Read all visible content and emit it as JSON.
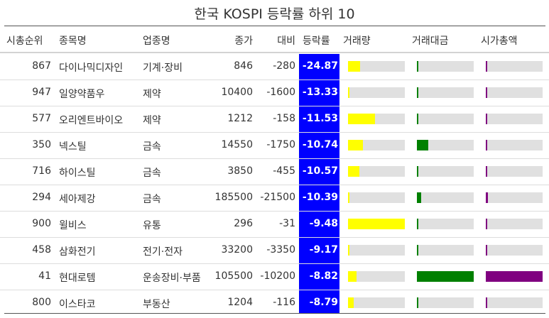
{
  "title": "한국 KOSPI 등락률 하위 10",
  "columns": {
    "rank": "시총순위",
    "name": "종목명",
    "sector": "업종명",
    "close": "종가",
    "diff": "대비",
    "change": "등락률",
    "volume": "거래량",
    "value": "거래대금",
    "cap": "시가총액"
  },
  "colors": {
    "change_bg": "#0000ff",
    "volume_bar": "#ffff00",
    "value_bar": "#008000",
    "cap_bar": "#800080",
    "bar_track": "#e0e0e0"
  },
  "rows": [
    {
      "rank": "867",
      "name": "다이나믹디자인",
      "sector": "기계·장비",
      "close": "846",
      "diff": "-280",
      "change": "-24.87",
      "volume_level": 0.21,
      "value_level": 0.02,
      "cap_level": 0.02
    },
    {
      "rank": "947",
      "name": "일양약품우",
      "sector": "제약",
      "close": "10400",
      "diff": "-1600",
      "change": "-13.33",
      "volume_level": 0.02,
      "value_level": 0.0,
      "cap_level": 0.0
    },
    {
      "rank": "577",
      "name": "오리엔트바이오",
      "sector": "제약",
      "close": "1212",
      "diff": "-158",
      "change": "-11.53",
      "volume_level": 0.47,
      "value_level": 0.03,
      "cap_level": 0.02
    },
    {
      "rank": "350",
      "name": "넥스틸",
      "sector": "금속",
      "close": "14550",
      "diff": "-1750",
      "change": "-10.74",
      "volume_level": 0.26,
      "value_level": 0.2,
      "cap_level": 0.03
    },
    {
      "rank": "716",
      "name": "하이스틸",
      "sector": "금속",
      "close": "3850",
      "diff": "-455",
      "change": "-10.57",
      "volume_level": 0.2,
      "value_level": 0.03,
      "cap_level": 0.02
    },
    {
      "rank": "294",
      "name": "세아제강",
      "sector": "금속",
      "close": "185500",
      "diff": "-21500",
      "change": "-10.39",
      "volume_level": 0.02,
      "value_level": 0.08,
      "cap_level": 0.04
    },
    {
      "rank": "900",
      "name": "윌비스",
      "sector": "유통",
      "close": "296",
      "diff": "-31",
      "change": "-9.48",
      "volume_level": 1.0,
      "value_level": 0.02,
      "cap_level": 0.0
    },
    {
      "rank": "458",
      "name": "삼화전기",
      "sector": "전기·전자",
      "close": "33200",
      "diff": "-3350",
      "change": "-9.17",
      "volume_level": 0.02,
      "value_level": 0.02,
      "cap_level": 0.01
    },
    {
      "rank": "41",
      "name": "현대로템",
      "sector": "운송장비·부품",
      "close": "105500",
      "diff": "-10200",
      "change": "-8.82",
      "volume_level": 0.15,
      "value_level": 1.0,
      "cap_level": 1.0
    },
    {
      "rank": "800",
      "name": "이스타코",
      "sector": "부동산",
      "close": "1204",
      "diff": "-116",
      "change": "-8.79",
      "volume_level": 0.1,
      "value_level": 0.0,
      "cap_level": 0.01
    }
  ]
}
